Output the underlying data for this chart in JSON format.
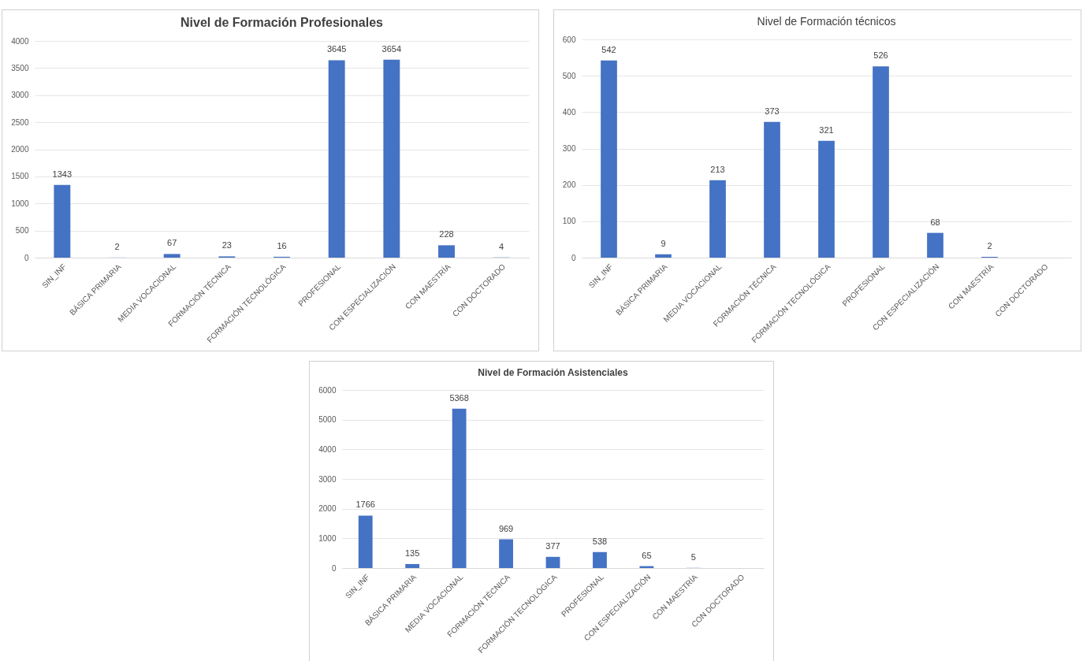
{
  "chart_data": [
    {
      "type": "bar",
      "title": "Nivel de Formación Profesionales",
      "categories": [
        "SIN_INF",
        "BÁSICA PRIMARIA",
        "MEDIA VOCACIONAL",
        "FORMACIÓN TÉCNICA",
        "FORMACIÓN TECNOLÓGICA",
        "PROFESIONAL",
        "CON ESPECIALIZACIÓN",
        "CON MAESTRÍA",
        "CON DOCTORADO"
      ],
      "series": [
        {
          "color": "#4472c4",
          "values": [
            1343,
            2,
            67,
            23,
            16,
            3645,
            3654,
            228,
            4
          ]
        }
      ],
      "ylim": [
        0,
        4000
      ],
      "yticks": [
        0,
        500,
        1000,
        1500,
        2000,
        2500,
        3000,
        3500,
        4000
      ],
      "grid": "y",
      "data_labels": true
    },
    {
      "type": "bar",
      "title": "Nivel de Formación técnicos",
      "categories": [
        "SIN_INF",
        "BÁSICA PRIMARIA",
        "MEDIA VOCACIONAL",
        "FORMACIÓN TÉCNICA",
        "FORMACIÓN TECNOLÓGICA",
        "PROFESIONAL",
        "CON ESPECIALIZACIÓN",
        "CON MAESTRÍA",
        "CON DOCTORADO"
      ],
      "series": [
        {
          "color": "#4472c4",
          "values": [
            542,
            9,
            213,
            373,
            321,
            526,
            68,
            2,
            null
          ]
        }
      ],
      "ylim": [
        0,
        600
      ],
      "yticks": [
        0,
        100,
        200,
        300,
        400,
        500,
        600
      ],
      "grid": "y",
      "data_labels": true
    },
    {
      "type": "bar",
      "title": "Nivel de Formación Asistenciales",
      "categories": [
        "SIN_INF",
        "BÁSICA PRIMARIA",
        "MEDIA VOCACIONAL",
        "FORMACIÓN TÉCNICA",
        "FORMACIÓN TECNOLÓGICA",
        "PROFESIONAL",
        "CON ESPECIALIZACIÓN",
        "CON MAESTRÍA",
        "CON DOCTORADO"
      ],
      "series": [
        {
          "color": "#4472c4",
          "values": [
            1766,
            135,
            5368,
            969,
            377,
            538,
            65,
            5,
            null
          ]
        }
      ],
      "ylim": [
        0,
        6000
      ],
      "yticks": [
        0,
        1000,
        2000,
        3000,
        4000,
        5000,
        6000
      ],
      "grid": "y",
      "data_labels": true
    }
  ]
}
